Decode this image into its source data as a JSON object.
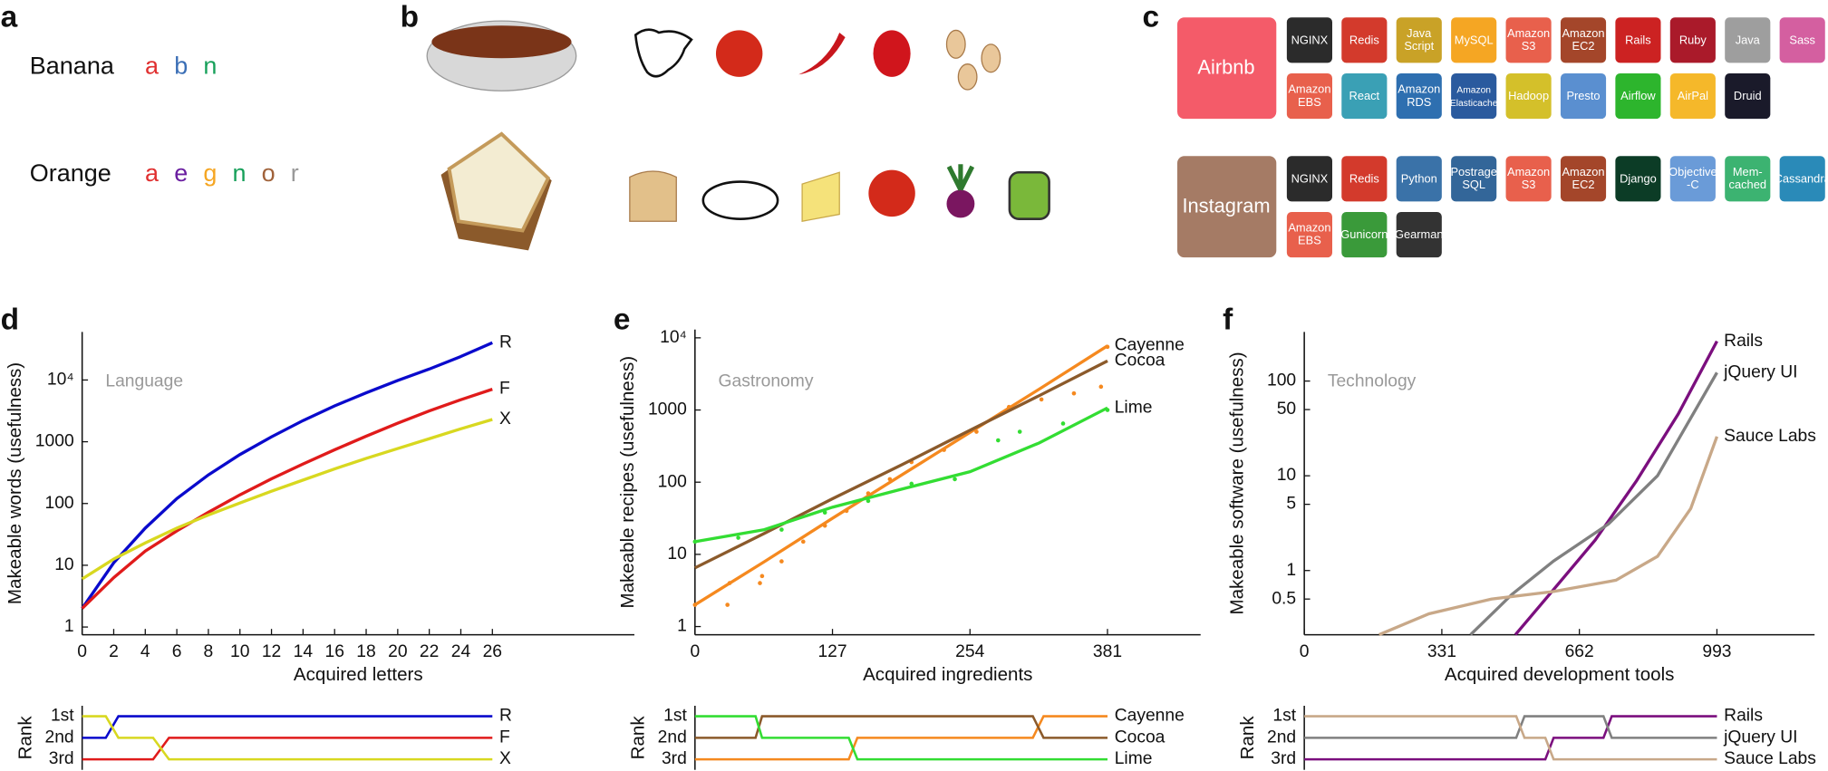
{
  "panel_a": {
    "label": "a",
    "words": [
      {
        "word": "Banana",
        "letters": [
          {
            "text": "a",
            "color": "#e03030"
          },
          {
            "text": "b",
            "color": "#3b6fb6"
          },
          {
            "text": "n",
            "color": "#17a05a"
          }
        ]
      },
      {
        "word": "Orange",
        "letters": [
          {
            "text": "a",
            "color": "#e03030"
          },
          {
            "text": "e",
            "color": "#6a1ea0"
          },
          {
            "text": "g",
            "color": "#f5a623"
          },
          {
            "text": "n",
            "color": "#17a05a"
          },
          {
            "text": "o",
            "color": "#a0623a"
          },
          {
            "text": "r",
            "color": "#999999"
          }
        ]
      }
    ]
  },
  "panel_b": {
    "label": "b"
  },
  "panel_c": {
    "label": "c",
    "companies": [
      {
        "name": "Airbnb",
        "color": "#f45b69",
        "tools": [
          {
            "label": "NGINX",
            "color": "#2b2b2b"
          },
          {
            "label": "Redis",
            "color": "#d33a2c"
          },
          {
            "label": "Java\nScript",
            "color": "#c9a227"
          },
          {
            "label": "MySQL",
            "color": "#f5a623"
          },
          {
            "label": "Amazon\nS3",
            "color": "#e8604c"
          },
          {
            "label": "Amazon\nEC2",
            "color": "#a4462a"
          },
          {
            "label": "Rails",
            "color": "#cc2222"
          },
          {
            "label": "Ruby",
            "color": "#aa1a2a"
          },
          {
            "label": "Java",
            "color": "#9e9e9e"
          },
          {
            "label": "Sass",
            "color": "#d45fa0"
          },
          {
            "label": "Amazon\nEBS",
            "color": "#e8604c"
          },
          {
            "label": "React",
            "color": "#3aa0b5"
          },
          {
            "label": "Amazon\nRDS",
            "color": "#2e6fb0"
          },
          {
            "label": "Amazon\nElasticache",
            "color": "#2a5a9e"
          },
          {
            "label": "Hadoop",
            "color": "#d4c02a"
          },
          {
            "label": "Presto",
            "color": "#5a8fd0"
          },
          {
            "label": "Airflow",
            "color": "#2db52d"
          },
          {
            "label": "AirPal",
            "color": "#f5b82a"
          },
          {
            "label": "Druid",
            "color": "#1a1a2a"
          }
        ]
      },
      {
        "name": "Instagram",
        "color": "#a57b65",
        "tools": [
          {
            "label": "NGINX",
            "color": "#2b2b2b"
          },
          {
            "label": "Redis",
            "color": "#d33a2c"
          },
          {
            "label": "Python",
            "color": "#3a72a8"
          },
          {
            "label": "Postrage\nSQL",
            "color": "#336699"
          },
          {
            "label": "Amazon\nS3",
            "color": "#e8604c"
          },
          {
            "label": "Amazon\nEC2",
            "color": "#a4462a"
          },
          {
            "label": "Django",
            "color": "#0c3c26"
          },
          {
            "label": "Objective\n-C",
            "color": "#6a9bd8"
          },
          {
            "label": "Mem-\ncached",
            "color": "#3cb371"
          },
          {
            "label": "Cassandra",
            "color": "#2a8ab8"
          },
          {
            "label": "Amazon\nEBS",
            "color": "#e8604c"
          },
          {
            "label": "Gunicorn",
            "color": "#3a9a3a"
          },
          {
            "label": "Gearman",
            "color": "#333333"
          }
        ]
      }
    ]
  },
  "chart_data": [
    {
      "type": "line",
      "panel": "d",
      "annotation": "Language",
      "xlabel": "Acquired letters",
      "ylabel": "Makeable words (usefulness)",
      "ylog": true,
      "xlim": [
        0,
        35
      ],
      "xticks": [
        0,
        2,
        4,
        6,
        8,
        10,
        12,
        14,
        16,
        18,
        20,
        22,
        24,
        26
      ],
      "ylim": [
        0.75,
        60000
      ],
      "yticks": [
        1,
        10,
        100,
        1000,
        {
          "value": 10000,
          "label": "10⁴"
        }
      ],
      "x": [
        0,
        2,
        4,
        6,
        8,
        10,
        12,
        14,
        16,
        18,
        20,
        22,
        24,
        26
      ],
      "series": [
        {
          "name": "R",
          "color": "#0a0acc",
          "values": [
            2,
            11,
            40,
            120,
            290,
            620,
            1200,
            2200,
            3800,
            6200,
            9800,
            15000,
            24000,
            40000
          ]
        },
        {
          "name": "F",
          "color": "#e01b1b",
          "values": [
            2,
            6.3,
            17,
            36,
            72,
            138,
            251,
            437,
            741,
            1230,
            2000,
            3160,
            4790,
            7080
          ]
        },
        {
          "name": "X",
          "color": "#d8d820",
          "values": [
            6,
            12.6,
            23,
            40,
            65,
            102,
            158,
            240,
            363,
            537,
            776,
            1120,
            1620,
            2290
          ]
        }
      ]
    },
    {
      "type": "line",
      "ylabel": "Rank",
      "xlim": [
        0,
        35
      ],
      "ylim": [
        3,
        1
      ],
      "yticks": [
        {
          "value": 1,
          "label": "1st"
        },
        {
          "value": 2,
          "label": "2nd"
        },
        {
          "value": 3,
          "label": "3rd"
        }
      ],
      "x": [
        0,
        1.5,
        2.3,
        4.5,
        5.5,
        26
      ],
      "series": [
        {
          "name": "R",
          "color": "#0a0acc",
          "values": [
            2,
            2,
            1,
            1,
            1,
            1
          ]
        },
        {
          "name": "F",
          "color": "#e01b1b",
          "values": [
            3,
            3,
            3,
            3,
            2,
            2
          ]
        },
        {
          "name": "X",
          "color": "#d8d820",
          "values": [
            1,
            1,
            2,
            2,
            3,
            3
          ]
        }
      ]
    },
    {
      "type": "line",
      "panel": "e",
      "annotation": "Gastronomy",
      "xlabel": "Acquired ingredients",
      "ylabel": "Makeable recipes (usefulness)",
      "ylog": true,
      "xlim": [
        0,
        467
      ],
      "xticks": [
        0,
        127,
        254,
        381
      ],
      "ylim": [
        0.77,
        13000
      ],
      "yticks": [
        1,
        10,
        100,
        1000,
        {
          "value": 10000,
          "label": "10⁴"
        }
      ],
      "x": [
        0,
        64,
        127,
        191,
        254,
        318,
        381
      ],
      "series": [
        {
          "name": "Cayenne",
          "color": "#f5891f",
          "values": [
            2,
            7.9,
            31.6,
            126,
            490,
            1950,
            7760
          ]
        },
        {
          "name": "Cocoa",
          "color": "#8b5a2b",
          "values": [
            6.5,
            19.5,
            59,
            174,
            525,
            1580,
            4790
          ]
        },
        {
          "name": "Lime",
          "color": "#33dd33",
          "values": [
            15,
            22,
            45,
            80,
            140,
            350,
            1070
          ]
        }
      ],
      "samples": [
        {
          "color": "#f5891f",
          "x": [
            0,
            30,
            32,
            60,
            62,
            80,
            100,
            120,
            140,
            160,
            180,
            200,
            230,
            260,
            290,
            320,
            350,
            375,
            381
          ],
          "values": [
            2,
            2,
            4,
            4,
            5,
            8,
            15,
            25,
            40,
            70,
            110,
            190,
            280,
            500,
            1100,
            1400,
            1700,
            2100,
            7500
          ]
        },
        {
          "color": "#33dd33",
          "x": [
            0,
            40,
            80,
            120,
            160,
            200,
            240,
            280,
            300,
            340,
            381
          ],
          "values": [
            15,
            17,
            22,
            38,
            55,
            95,
            110,
            380,
            500,
            650,
            1000
          ]
        }
      ]
    },
    {
      "type": "line",
      "ylabel": "Rank",
      "xlim": [
        0,
        467
      ],
      "ylim": [
        3,
        1
      ],
      "yticks": [
        {
          "value": 1,
          "label": "1st"
        },
        {
          "value": 2,
          "label": "2nd"
        },
        {
          "value": 3,
          "label": "3rd"
        }
      ],
      "x": [
        0,
        56,
        62,
        142,
        150,
        312,
        322,
        381
      ],
      "series": [
        {
          "name": "Cayenne",
          "color": "#f5891f",
          "values": [
            3,
            3,
            3,
            3,
            2,
            2,
            1,
            1
          ]
        },
        {
          "name": "Cocoa",
          "color": "#8b5a2b",
          "values": [
            2,
            2,
            1,
            1,
            1,
            1,
            2,
            2
          ]
        },
        {
          "name": "Lime",
          "color": "#33dd33",
          "values": [
            1,
            1,
            2,
            2,
            3,
            3,
            3,
            3
          ]
        }
      ]
    },
    {
      "type": "line",
      "panel": "f",
      "annotation": "Technology",
      "xlabel": "Acquired development tools",
      "ylabel": "Makeable software (usefulness)",
      "ylog": true,
      "xlim": [
        0,
        1228
      ],
      "xticks": [
        0,
        331,
        662,
        993
      ],
      "ylim": [
        0.21,
        330
      ],
      "yticks": [
        0.5,
        1,
        5,
        10,
        50,
        100
      ],
      "series": [
        {
          "name": "Rails",
          "color": "#7b0f7e",
          "x": [
            508,
            600,
            700,
            800,
            900,
            993
          ],
          "values": [
            0.21,
            0.63,
            2.1,
            8.9,
            45,
            263
          ]
        },
        {
          "name": "jQuery UI",
          "color": "#808080",
          "x": [
            400,
            500,
            600,
            732,
            850,
            993
          ],
          "values": [
            0.21,
            0.56,
            1.26,
            3.1,
            10,
            123
          ]
        },
        {
          "name": "Sauce Labs",
          "color": "#c8a888",
          "x": [
            180,
            300,
            450,
            600,
            750,
            850,
            930,
            993
          ],
          "values": [
            0.21,
            0.35,
            0.5,
            0.6,
            0.79,
            1.41,
            4.5,
            26
          ]
        }
      ]
    },
    {
      "type": "line",
      "ylabel": "Rank",
      "xlim": [
        0,
        1228
      ],
      "ylim": [
        3,
        1
      ],
      "yticks": [
        {
          "value": 1,
          "label": "1st"
        },
        {
          "value": 2,
          "label": "2nd"
        },
        {
          "value": 3,
          "label": "3rd"
        }
      ],
      "x": [
        0,
        510,
        530,
        580,
        600,
        720,
        740,
        993
      ],
      "series": [
        {
          "name": "Rails",
          "color": "#7b0f7e",
          "values": [
            3,
            3,
            3,
            3,
            2,
            2,
            1,
            1
          ]
        },
        {
          "name": "jQuery UI",
          "color": "#808080",
          "values": [
            2,
            2,
            1,
            1,
            1,
            1,
            2,
            2
          ]
        },
        {
          "name": "Sauce Labs",
          "color": "#c8a888",
          "values": [
            1,
            1,
            2,
            2,
            3,
            3,
            3,
            3
          ]
        }
      ]
    }
  ]
}
